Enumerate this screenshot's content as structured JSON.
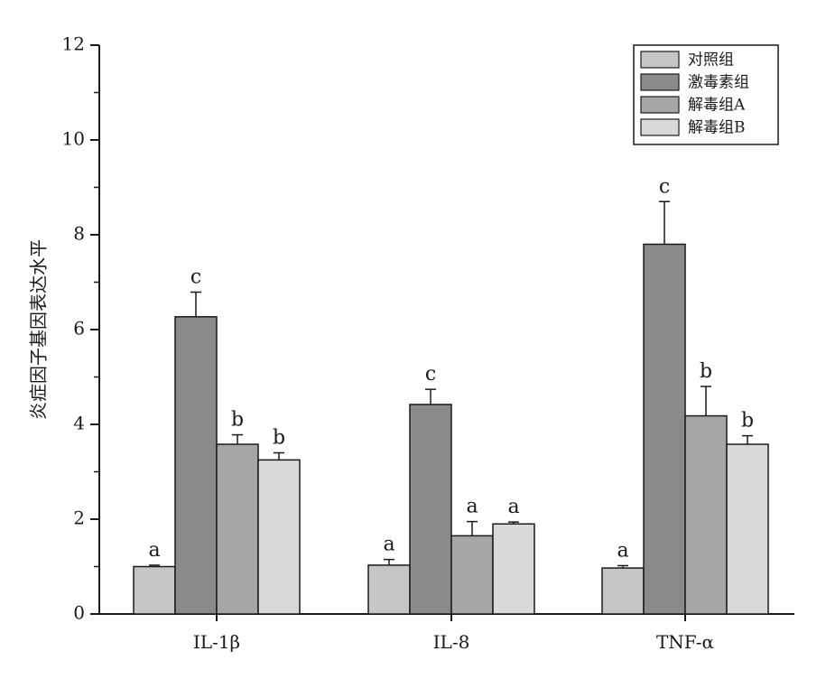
{
  "chart_data": {
    "type": "bar",
    "title": "",
    "xlabel": "",
    "ylabel": "炎症因子基因表达水平",
    "ylim": [
      0,
      12
    ],
    "yticks": [
      0,
      2,
      4,
      6,
      8,
      10,
      12
    ],
    "grid": false,
    "legend_position": "top-right",
    "categories": [
      "IL-1β",
      "IL-8",
      "TNF-α"
    ],
    "series": [
      {
        "name": "对照组",
        "color": "#c8c8c8",
        "values": [
          1.0,
          1.03,
          0.97
        ],
        "errors": [
          0.03,
          0.12,
          0.05
        ],
        "labels": [
          "a",
          "a",
          "a"
        ]
      },
      {
        "name": "激毒素组",
        "color": "#8c8c8c",
        "values": [
          6.27,
          4.42,
          7.8
        ],
        "errors": [
          0.52,
          0.32,
          0.9
        ],
        "labels": [
          "c",
          "c",
          "c"
        ]
      },
      {
        "name": "解毒组A",
        "color": "#a8a8a8",
        "values": [
          3.58,
          1.65,
          4.18
        ],
        "errors": [
          0.2,
          0.3,
          0.62
        ],
        "labels": [
          "b",
          "a",
          "b"
        ]
      },
      {
        "name": "解毒组B",
        "color": "#dcdcdc",
        "values": [
          3.25,
          1.9,
          3.58
        ],
        "errors": [
          0.15,
          0.04,
          0.18
        ],
        "labels": [
          "b",
          "a",
          "b"
        ]
      }
    ]
  }
}
